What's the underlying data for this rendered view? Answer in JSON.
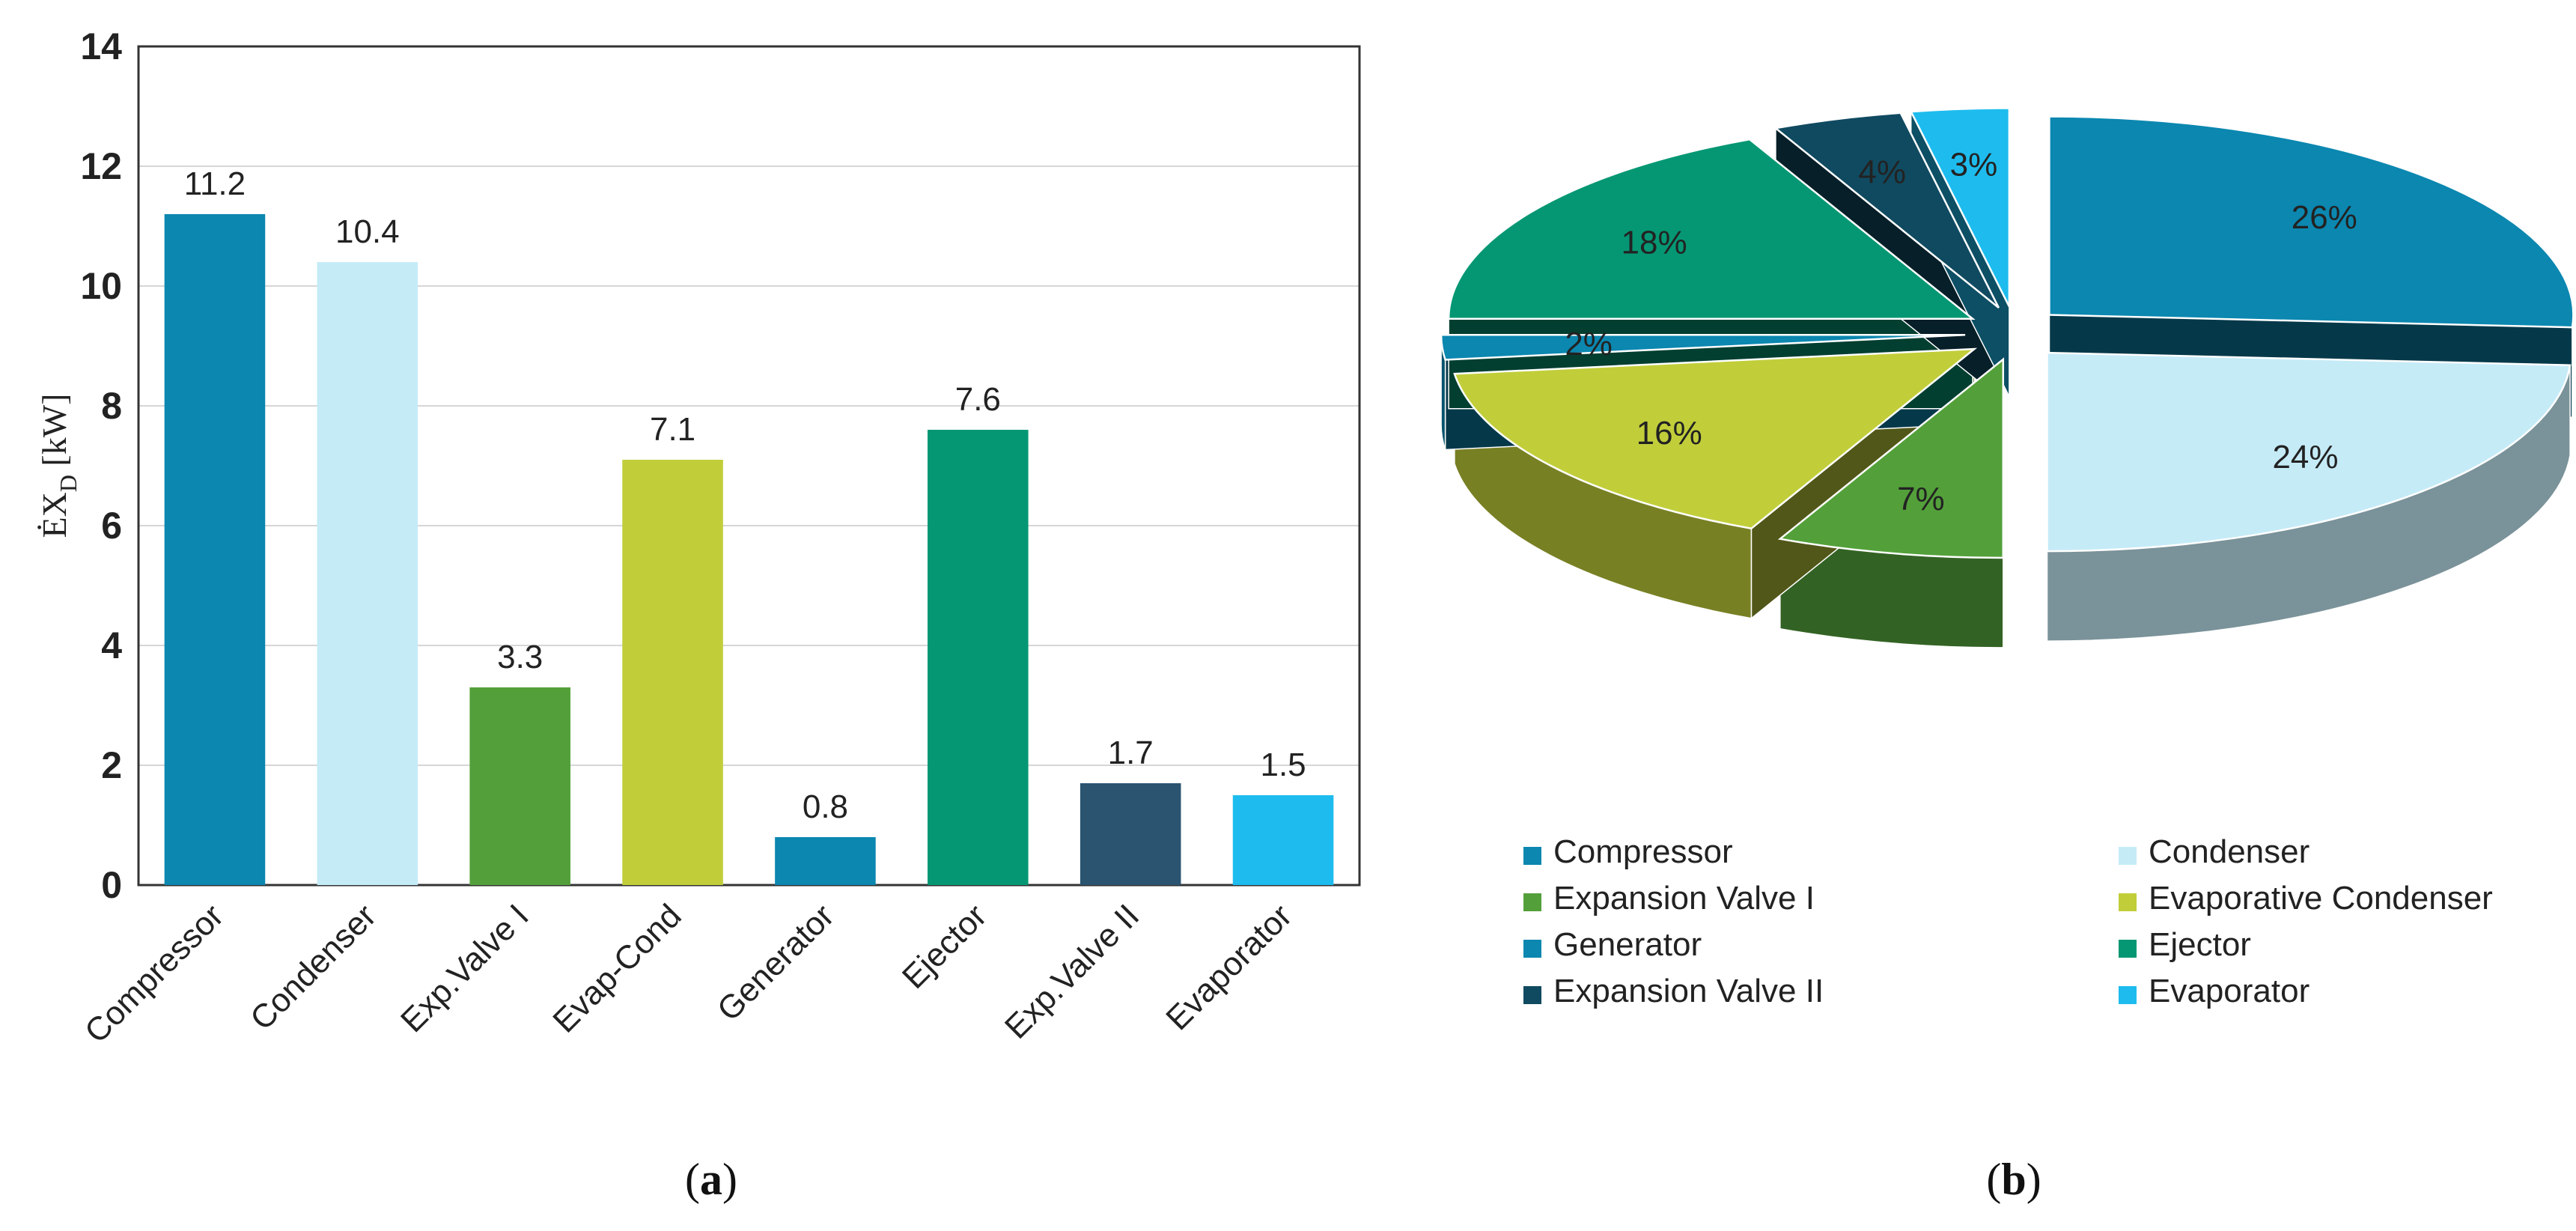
{
  "chart_data": [
    {
      "type": "bar",
      "title": "",
      "xlabel": "",
      "ylabel": "ĖX_D [kW]",
      "ylabel_main": "ĖX",
      "ylabel_sub": "D",
      "ylabel_unit": " [kW]",
      "ylim": [
        0,
        14
      ],
      "yticks": [
        "0",
        "2",
        "4",
        "6",
        "8",
        "10",
        "12",
        "14"
      ],
      "grid": true,
      "categories": [
        "Compressor",
        "Condenser",
        "Exp.Valve I",
        "Evap-Cond",
        "Generator",
        "Ejector",
        "Exp.Valve II",
        "Evaporator"
      ],
      "values": [
        11.2,
        10.4,
        3.3,
        7.1,
        0.8,
        7.6,
        1.7,
        1.5
      ],
      "data_labels": [
        "11.2",
        "10.4",
        "3.3",
        "7.1",
        "0.8",
        "7.6",
        "1.7",
        "1.5"
      ],
      "colors": [
        "#0b87b0",
        "#c5ebf7",
        "#53a03a",
        "#c1ce3a",
        "#0b87b0",
        "#059773",
        "#2a5470",
        "#1ebcee"
      ],
      "panel_label": "(a)",
      "panel_letter": "a"
    },
    {
      "type": "pie",
      "style": "3d-exploded",
      "slices": [
        {
          "name": "Compressor",
          "value": 26,
          "label": "26%",
          "color": "#0b87b0"
        },
        {
          "name": "Condenser",
          "value": 24,
          "label": "24%",
          "color": "#c5ebf7"
        },
        {
          "name": "Expansion Valve I",
          "value": 7,
          "label": "7%",
          "color": "#53a03a"
        },
        {
          "name": "Evaporative Condenser",
          "value": 16,
          "label": "16%",
          "color": "#c1ce3a"
        },
        {
          "name": "Generator",
          "value": 2,
          "label": "2%",
          "color": "#0b87b0"
        },
        {
          "name": "Ejector",
          "value": 18,
          "label": "18%",
          "color": "#059773"
        },
        {
          "name": "Expansion Valve II",
          "value": 4,
          "label": "4%",
          "color": "#104a60"
        },
        {
          "name": "Evaporator",
          "value": 3,
          "label": "3%",
          "color": "#1ebcee"
        }
      ],
      "legend": [
        {
          "label": "Compressor",
          "color": "#0b87b0"
        },
        {
          "label": "Condenser",
          "color": "#c5ebf7"
        },
        {
          "label": "Expansion Valve I",
          "color": "#53a03a"
        },
        {
          "label": "Evaporative Condenser",
          "color": "#c1ce3a"
        },
        {
          "label": "Generator",
          "color": "#0b87b0"
        },
        {
          "label": "Ejector",
          "color": "#059773"
        },
        {
          "label": "Expansion Valve II",
          "color": "#104a60"
        },
        {
          "label": "Evaporator",
          "color": "#1ebcee"
        }
      ],
      "legend_position": "bottom",
      "panel_label": "(b)",
      "panel_letter": "b"
    }
  ]
}
